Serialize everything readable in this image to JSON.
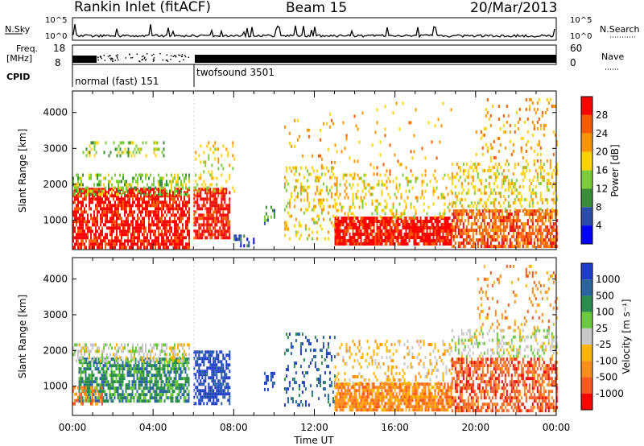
{
  "title": {
    "station": "Rankin Inlet (fitACF)",
    "beam": "Beam 15",
    "date": "20/Mar/2013"
  },
  "header": {
    "noise_left_label": "N.Sky",
    "noise_right_label": "N.Search",
    "noise_ticks": [
      "10^5",
      "10^0"
    ],
    "freq_label_1": "Freq.",
    "freq_label_2": "[MHz]",
    "freq_ticks": [
      "18",
      "8"
    ],
    "nave_label": "Nave",
    "nave_ticks": [
      "60",
      "0"
    ],
    "cpid_label": "CPID",
    "cpid_modes": [
      "normal (fast) 151",
      "twofsound 3501"
    ]
  },
  "colors": {
    "frame": "#000000",
    "mode_line": "#d0d0d0"
  },
  "chart_data": [
    {
      "type": "heatmap",
      "panel": "power",
      "ylabel": "Slant Range [km]",
      "yticks": [
        1000,
        2000,
        3000,
        4000
      ],
      "ylim": [
        180,
        4600
      ],
      "xlabel": "",
      "x_tick_labels": [
        "00:00",
        "04:00",
        "08:00",
        "12:00",
        "16:00",
        "20:00",
        "00:00"
      ],
      "x_range_hours": [
        0,
        24
      ],
      "colorbar": {
        "label": "Power [dB]",
        "ticks": [
          "28",
          "24",
          "20",
          "16",
          "12",
          "8",
          "4"
        ],
        "colors": [
          "#ff0000",
          "#ff5a00",
          "#ff9400",
          "#ffd200",
          "#7ccc3c",
          "#3c8c3c",
          "#2c4ca8",
          "#0000ff"
        ]
      },
      "regions": [
        {
          "h0": 0.0,
          "h1": 5.8,
          "r0": 200,
          "r1": 1900,
          "c": 0,
          "d": 0.75
        },
        {
          "h0": 0.0,
          "h1": 5.8,
          "r0": 1700,
          "r1": 2300,
          "c": 4,
          "d": 0.45
        },
        {
          "h0": 0.5,
          "h1": 4.5,
          "r0": 2800,
          "r1": 3200,
          "c": 4,
          "d": 0.25
        },
        {
          "h0": 6.0,
          "h1": 7.8,
          "r0": 500,
          "r1": 1900,
          "c": 0,
          "d": 0.75
        },
        {
          "h0": 6.0,
          "h1": 8.0,
          "r0": 1800,
          "r1": 3200,
          "c": 3,
          "d": 0.2
        },
        {
          "h0": 8.0,
          "h1": 9.0,
          "r0": 300,
          "r1": 600,
          "c": 6,
          "d": 0.3
        },
        {
          "h0": 9.5,
          "h1": 10.0,
          "r0": 900,
          "r1": 1400,
          "c": 5,
          "d": 0.4
        },
        {
          "h0": 10.5,
          "h1": 13.0,
          "r0": 500,
          "r1": 2500,
          "c": 3,
          "d": 0.25
        },
        {
          "h0": 10.5,
          "h1": 13.0,
          "r0": 2500,
          "r1": 4000,
          "c": 2,
          "d": 0.05
        },
        {
          "h0": 13.0,
          "h1": 18.8,
          "r0": 300,
          "r1": 1100,
          "c": 0,
          "d": 0.85
        },
        {
          "h0": 13.0,
          "h1": 18.8,
          "r0": 1100,
          "r1": 2300,
          "c": 3,
          "d": 0.25
        },
        {
          "h0": 13.0,
          "h1": 18.8,
          "r0": 2300,
          "r1": 4300,
          "c": 2,
          "d": 0.04
        },
        {
          "h0": 18.8,
          "h1": 24.0,
          "r0": 300,
          "r1": 1300,
          "c": 1,
          "d": 0.7
        },
        {
          "h0": 18.8,
          "h1": 24.0,
          "r0": 1300,
          "r1": 2600,
          "c": 3,
          "d": 0.3
        },
        {
          "h0": 20.0,
          "h1": 24.0,
          "r0": 2600,
          "r1": 4400,
          "c": 2,
          "d": 0.12
        }
      ]
    },
    {
      "type": "heatmap",
      "panel": "velocity",
      "ylabel": "Slant Range [km]",
      "yticks": [
        1000,
        2000,
        3000,
        4000
      ],
      "ylim": [
        180,
        4600
      ],
      "xlabel": "Time UT",
      "x_tick_labels": [
        "00:00",
        "04:00",
        "08:00",
        "12:00",
        "16:00",
        "20:00",
        "00:00"
      ],
      "x_range_hours": [
        0,
        24
      ],
      "colorbar": {
        "label": "Velocity [m s⁻¹]",
        "ticks": [
          "1000",
          "500",
          "100",
          "25",
          "-25",
          "-100",
          "-500",
          "-1000"
        ],
        "colors": [
          "#1e3cc8",
          "#2c64a0",
          "#2c8c50",
          "#6cc83c",
          "#c8c8c8",
          "#ffb400",
          "#ff8c1e",
          "#ff5a1e",
          "#ff0000"
        ]
      },
      "regions": [
        {
          "h0": 0.3,
          "h1": 5.8,
          "r0": 600,
          "r1": 1800,
          "c": 2,
          "d": 0.7
        },
        {
          "h0": 0.0,
          "h1": 5.8,
          "r0": 1700,
          "r1": 2200,
          "c": 4,
          "d": 0.5
        },
        {
          "h0": 0.0,
          "h1": 1.5,
          "r0": 500,
          "r1": 1000,
          "c": 6,
          "d": 0.5
        },
        {
          "h0": 6.0,
          "h1": 7.8,
          "r0": 500,
          "r1": 2000,
          "c": 0,
          "d": 0.65
        },
        {
          "h0": 9.5,
          "h1": 10.0,
          "r0": 900,
          "r1": 1400,
          "c": 0,
          "d": 0.3
        },
        {
          "h0": 10.5,
          "h1": 13.0,
          "r0": 500,
          "r1": 2500,
          "c": 1,
          "d": 0.2
        },
        {
          "h0": 13.0,
          "h1": 18.8,
          "r0": 300,
          "r1": 1100,
          "c": 6,
          "d": 0.8
        },
        {
          "h0": 13.0,
          "h1": 18.8,
          "r0": 1100,
          "r1": 2300,
          "c": 5,
          "d": 0.2
        },
        {
          "h0": 18.8,
          "h1": 24.0,
          "r0": 300,
          "r1": 1800,
          "c": 7,
          "d": 0.6
        },
        {
          "h0": 18.8,
          "h1": 24.0,
          "r0": 1800,
          "r1": 2600,
          "c": 4,
          "d": 0.35
        },
        {
          "h0": 20.0,
          "h1": 24.0,
          "r0": 2600,
          "r1": 4400,
          "c": 6,
          "d": 0.12
        }
      ]
    }
  ]
}
